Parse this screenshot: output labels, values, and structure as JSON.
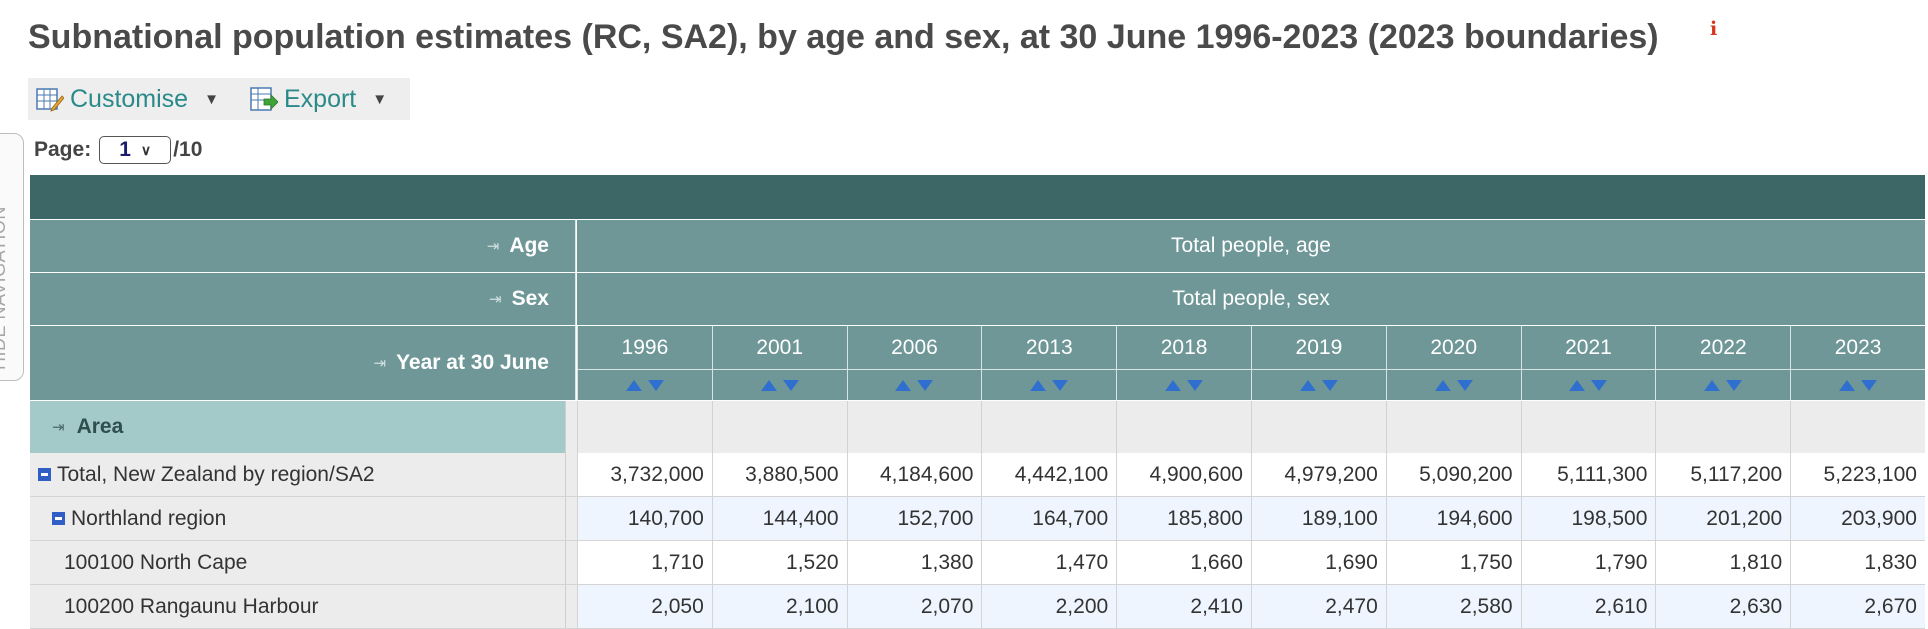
{
  "page": {
    "title": "Subnational population estimates (RC, SA2), by age and sex, at 30 June 1996-2023 (2023 boundaries)",
    "info_icon": "info-icon"
  },
  "side_tab": {
    "label": "HIDE NAVIGATION"
  },
  "toolbar": {
    "customise_label": "Customise",
    "export_label": "Export"
  },
  "pager": {
    "label": "Page:",
    "current": "1",
    "total": "/10"
  },
  "table": {
    "age_label": "Age",
    "age_value": "Total people, age",
    "sex_label": "Sex",
    "sex_value": "Total people, sex",
    "year_label": "Year at 30 June",
    "area_label": "Area",
    "years": [
      "1996",
      "2001",
      "2006",
      "2013",
      "2018",
      "2019",
      "2020",
      "2021",
      "2022",
      "2023"
    ],
    "rows": [
      {
        "label": "Total, New Zealand by region/SA2",
        "level": 0,
        "collapsible": true,
        "tint": "#ffffff",
        "values": [
          "3,732,000",
          "3,880,500",
          "4,184,600",
          "4,442,100",
          "4,900,600",
          "4,979,200",
          "5,090,200",
          "5,111,300",
          "5,117,200",
          "5,223,100"
        ]
      },
      {
        "label": "Northland region",
        "level": 1,
        "collapsible": true,
        "tint": "#eef5ff",
        "values": [
          "140,700",
          "144,400",
          "152,700",
          "164,700",
          "185,800",
          "189,100",
          "194,600",
          "198,500",
          "201,200",
          "203,900"
        ]
      },
      {
        "label": "100100 North Cape",
        "level": 2,
        "collapsible": false,
        "tint": "#ffffff",
        "values": [
          "1,710",
          "1,520",
          "1,380",
          "1,470",
          "1,660",
          "1,690",
          "1,750",
          "1,790",
          "1,810",
          "1,830"
        ]
      },
      {
        "label": "100200 Rangaunu Harbour",
        "level": 2,
        "collapsible": false,
        "tint": "#eef5ff",
        "values": [
          "2,050",
          "2,100",
          "2,070",
          "2,200",
          "2,410",
          "2,470",
          "2,580",
          "2,610",
          "2,630",
          "2,670"
        ]
      }
    ]
  },
  "colors": {
    "title": "#4a4a4a",
    "header_dark": "#3d6767",
    "header_mid": "#6f9797",
    "area_header": "#a3c9c9",
    "link_teal": "#2a8a8a",
    "sort_arrow": "#2f6fcf",
    "info_red": "#d8351e"
  }
}
